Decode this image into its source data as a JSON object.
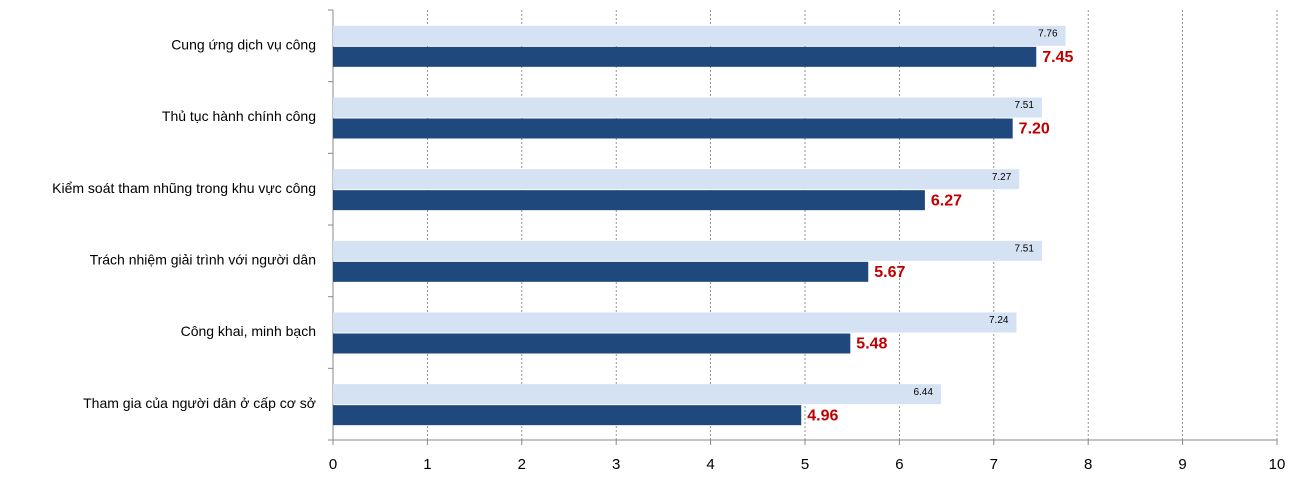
{
  "chart_data": {
    "type": "bar",
    "orientation": "horizontal",
    "categories": [
      "Cung ứng dịch vụ công",
      "Thủ tục hành chính công",
      "Kiểm soát tham nhũng trong khu vực công",
      "Trách nhiệm giải trình với người dân",
      "Công khai, minh bạch",
      "Tham gia của người dân ở cấp cơ sở"
    ],
    "series": [
      {
        "color": "#d5e2f3",
        "values": [
          7.76,
          7.51,
          7.27,
          7.51,
          7.24,
          6.44
        ]
      },
      {
        "color": "#1f497d",
        "values": [
          7.45,
          7.2,
          6.27,
          5.67,
          5.48,
          4.96
        ],
        "value_labels": [
          "7.45",
          "7.20",
          "6.27",
          "5.67",
          "5.48",
          "4.96"
        ],
        "label_color": "#c00000"
      }
    ],
    "xlim": [
      0,
      10
    ],
    "xticks": [
      0,
      1,
      2,
      3,
      4,
      5,
      6,
      7,
      8,
      9,
      10
    ],
    "grid": true
  }
}
